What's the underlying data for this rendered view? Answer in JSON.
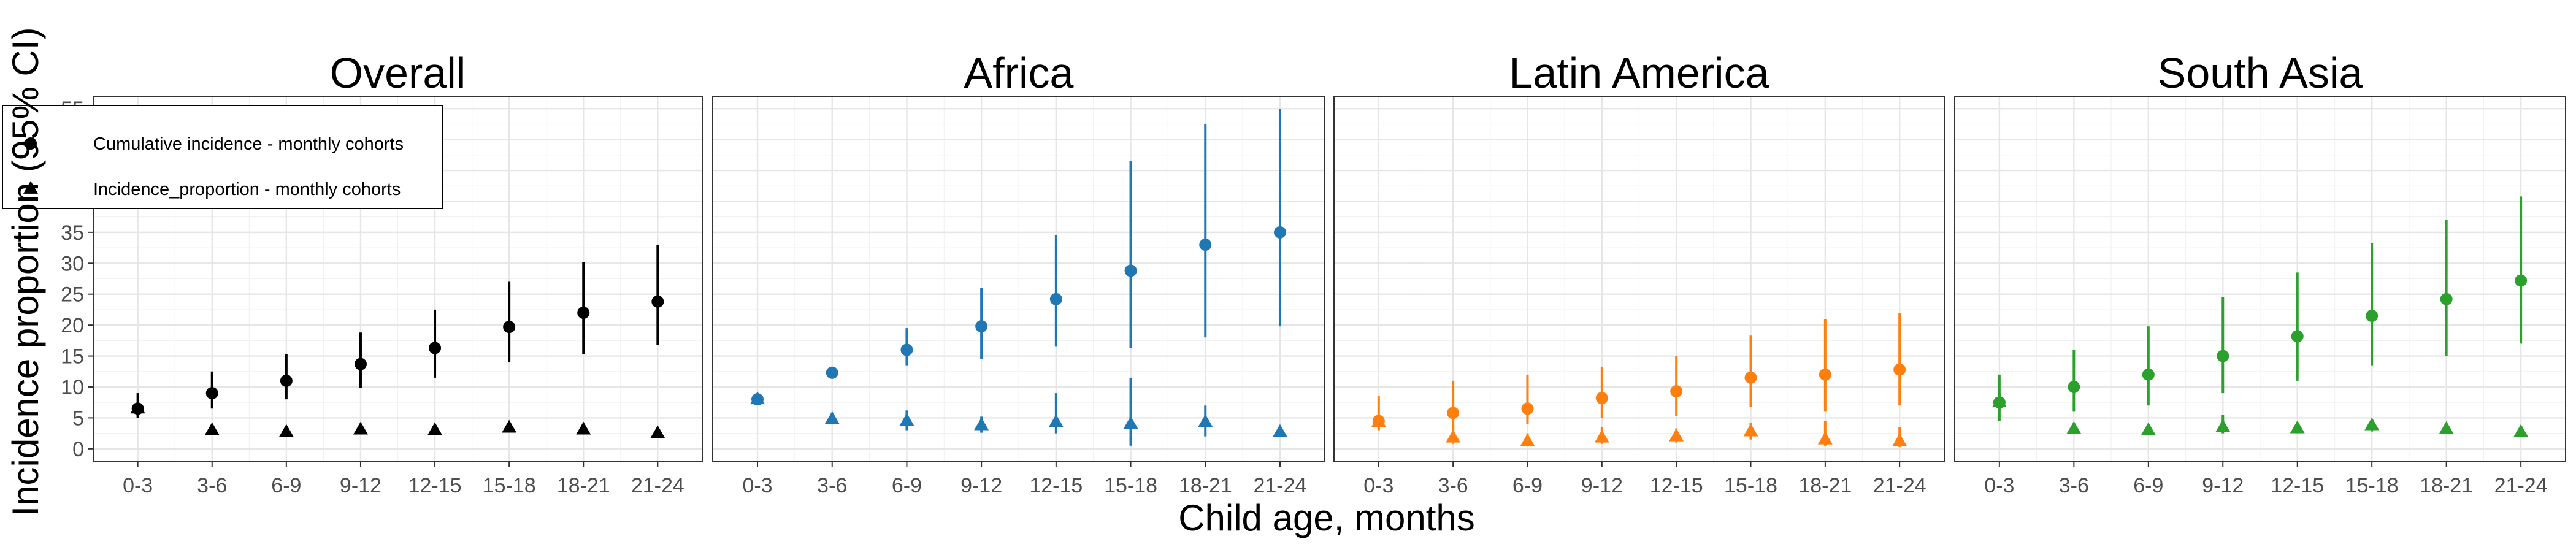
{
  "chart_data": {
    "type": "scatter",
    "xlabel": "Child age, months",
    "ylabel": "Incidence proportion (95% CI)",
    "categories": [
      "0-3",
      "3-6",
      "6-9",
      "9-12",
      "12-15",
      "15-18",
      "18-21",
      "21-24"
    ],
    "ylim": [
      -2,
      57
    ],
    "yticks": [
      0,
      5,
      10,
      15,
      20,
      25,
      30,
      35,
      40,
      45,
      50,
      55
    ],
    "grid": true,
    "legend": {
      "placement": "top-left, inside the first panel",
      "entries": [
        {
          "label": "Cumulative incidence - monthly cohorts",
          "marker": "circle"
        },
        {
          "label": "Incidence_proportion - monthly cohorts",
          "marker": "triangle"
        }
      ]
    },
    "panels": [
      {
        "title": "Overall",
        "color": "#000000",
        "series": [
          {
            "name": "Cumulative incidence - monthly cohorts",
            "marker": "circle",
            "values": [
              6.5,
              9,
              11,
              13.7,
              16.3,
              19.7,
              22,
              23.8
            ],
            "ci_low": [
              5,
              6.5,
              8,
              9.8,
              11.5,
              14,
              15.3,
              16.8
            ],
            "ci_high": [
              9,
              12.5,
              15.3,
              18.8,
              22.5,
              27,
              30.2,
              33
            ]
          },
          {
            "name": "Incidence_proportion - monthly cohorts",
            "marker": "triangle",
            "values": [
              6.5,
              3,
              2.7,
              3.1,
              3,
              3.4,
              3.1,
              2.5
            ],
            "ci_low": [
              5.3,
              2.5,
              2.2,
              2.5,
              2.4,
              2.7,
              2.4,
              1.9
            ],
            "ci_high": [
              7.5,
              3.6,
              3.3,
              3.7,
              3.6,
              4.1,
              3.8,
              3.1
            ]
          }
        ]
      },
      {
        "title": "Africa",
        "color": "#1f77b4",
        "series": [
          {
            "name": "Cumulative incidence - monthly cohorts",
            "marker": "circle",
            "values": [
              8,
              12.3,
              16,
              19.8,
              24.2,
              28.8,
              33,
              35
            ],
            "ci_low": [
              7.5,
              11.5,
              13.5,
              14.5,
              16.5,
              16.3,
              18,
              19.8
            ],
            "ci_high": [
              8.6,
              13,
              19.5,
              26,
              34.5,
              46.5,
              52.5,
              55
            ]
          },
          {
            "name": "Incidence_proportion - monthly cohorts",
            "marker": "triangle",
            "values": [
              8,
              4.8,
              4.5,
              3.8,
              4.3,
              4,
              4.3,
              2.7
            ],
            "ci_low": [
              7.6,
              4.2,
              3,
              2.6,
              2.5,
              0.5,
              2,
              2
            ],
            "ci_high": [
              8.6,
              5.3,
              6.2,
              5.2,
              9,
              11.5,
              7,
              3.3
            ]
          }
        ]
      },
      {
        "title": "Latin America",
        "color": "#ff7f0e",
        "series": [
          {
            "name": "Cumulative incidence - monthly cohorts",
            "marker": "circle",
            "values": [
              4.5,
              5.8,
              6.5,
              8.2,
              9.3,
              11.5,
              12,
              12.8
            ],
            "ci_low": [
              3,
              3,
              4,
              5,
              5.3,
              6.8,
              6,
              7
            ],
            "ci_high": [
              8.5,
              11,
              12,
              13.2,
              15,
              18.3,
              21,
              22
            ]
          },
          {
            "name": "Incidence_proportion - monthly cohorts",
            "marker": "triangle",
            "values": [
              4.3,
              1.8,
              1.2,
              1.8,
              2,
              2.8,
              1.5,
              1.2
            ],
            "ci_low": [
              3.5,
              0.8,
              0.5,
              0.8,
              1,
              1.5,
              0.5,
              0.3
            ],
            "ci_high": [
              5.3,
              4,
              2.5,
              3.5,
              3.3,
              4.2,
              4.5,
              3.5
            ]
          }
        ]
      },
      {
        "title": "South Asia",
        "color": "#2ca02c",
        "series": [
          {
            "name": "Cumulative incidence - monthly cohorts",
            "marker": "circle",
            "values": [
              7.5,
              10,
              12,
              15,
              18.2,
              21.5,
              24.2,
              27.2
            ],
            "ci_low": [
              4.5,
              6,
              7,
              9,
              11,
              13.5,
              15,
              17
            ],
            "ci_high": [
              12,
              16,
              19.8,
              24.5,
              28.5,
              33.3,
              37,
              40.8
            ]
          },
          {
            "name": "Incidence_proportion - monthly cohorts",
            "marker": "triangle",
            "values": [
              7.5,
              3.2,
              3,
              3.5,
              3.3,
              3.8,
              3.2,
              2.7
            ],
            "ci_low": [
              6.3,
              2.5,
              2.3,
              2.5,
              2.5,
              2.8,
              2.5,
              2
            ],
            "ci_high": [
              8.8,
              4,
              3.8,
              5.5,
              4.3,
              4.8,
              4,
              3.5
            ]
          }
        ]
      }
    ]
  }
}
